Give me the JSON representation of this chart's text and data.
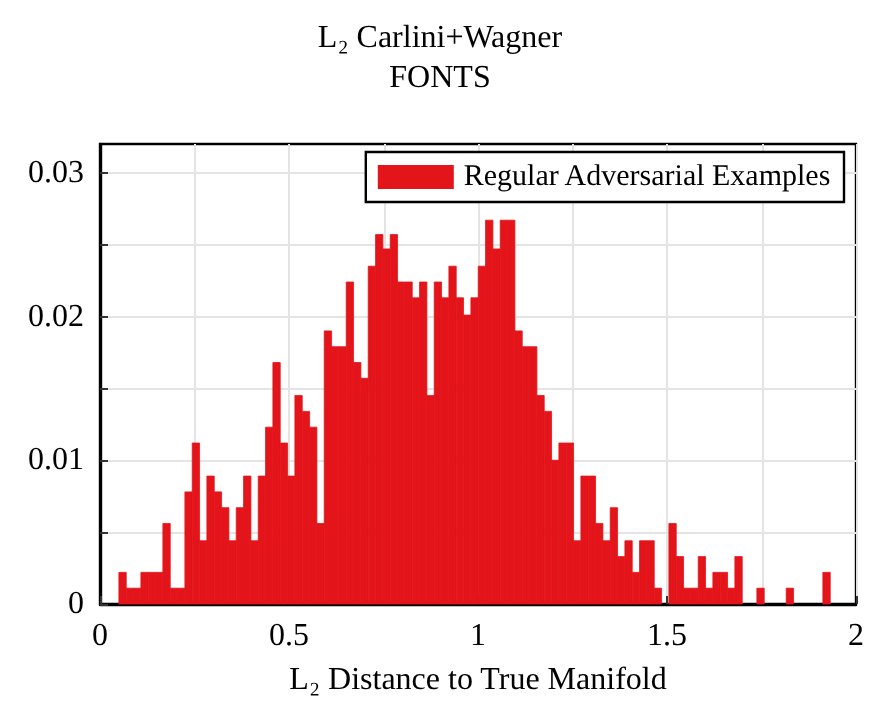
{
  "chart_data": {
    "type": "histogram",
    "title": "L₂ Carlini+Wagner",
    "subtitle": "FONTS",
    "xlabel": "L₂ Distance to True Manifold",
    "bins": [
      0.05,
      0.0694,
      0.0888,
      0.1082,
      0.1276,
      0.147,
      0.1664,
      0.1858,
      0.2052,
      0.2246,
      0.244,
      0.2634,
      0.2828,
      0.3022,
      0.3216,
      0.341,
      0.3604,
      0.3798,
      0.3992,
      0.4186,
      0.438,
      0.4574,
      0.4768,
      0.4962,
      0.5156,
      0.535,
      0.5544,
      0.5738,
      0.5932,
      0.6126,
      0.632,
      0.6514,
      0.6708,
      0.6902,
      0.7096,
      0.729,
      0.7484,
      0.7678,
      0.7872,
      0.8066,
      0.826,
      0.8454,
      0.8648,
      0.8842,
      0.9036,
      0.923,
      0.9424,
      0.9618,
      0.9812,
      1.0006,
      1.02,
      1.0394,
      1.0588,
      1.0782,
      1.0976,
      1.117,
      1.1364,
      1.1558,
      1.1752,
      1.1946,
      1.214,
      1.2334,
      1.2528,
      1.2722,
      1.2916,
      1.311,
      1.3304,
      1.3498,
      1.3692,
      1.3886,
      1.408,
      1.4274,
      1.4468,
      1.4662,
      1.4856,
      1.505,
      1.5244,
      1.5438,
      1.5632,
      1.5826,
      1.602,
      1.6214,
      1.6408,
      1.6602,
      1.6796,
      1.699,
      1.7184,
      1.7378,
      1.7572,
      1.7766,
      1.796,
      1.8154,
      1.8348,
      1.8542,
      1.8736,
      1.893,
      1.9124,
      1.9318
    ],
    "series": [
      {
        "name": "Regular Adversarial Examples",
        "color": "#e3151a",
        "values": [
          0.0022,
          0.0011,
          0.0011,
          0.0022,
          0.0022,
          0.0022,
          0.0056,
          0.0011,
          0.0011,
          0.0078,
          0.0112,
          0.0044,
          0.0089,
          0.0078,
          0.0067,
          0.0044,
          0.0067,
          0.0089,
          0.0044,
          0.0089,
          0.0123,
          0.0168,
          0.0112,
          0.0089,
          0.0145,
          0.0134,
          0.0123,
          0.0056,
          0.019,
          0.0179,
          0.0179,
          0.0224,
          0.0168,
          0.0157,
          0.0235,
          0.0257,
          0.0247,
          0.0257,
          0.0224,
          0.0224,
          0.0213,
          0.0224,
          0.0145,
          0.0224,
          0.0213,
          0.0235,
          0.0213,
          0.0201,
          0.0213,
          0.0235,
          0.0267,
          0.0247,
          0.0267,
          0.0267,
          0.019,
          0.0179,
          0.0179,
          0.0145,
          0.0134,
          0.01,
          0.0112,
          0.0112,
          0.0044,
          0.0089,
          0.0089,
          0.0056,
          0.0044,
          0.0067,
          0.0033,
          0.0044,
          0.0022,
          0.0044,
          0.0044,
          0.0011,
          0,
          0.0056,
          0.0033,
          0.0011,
          0.0011,
          0.0033,
          0.0011,
          0.0022,
          0.0022,
          0.0011,
          0.0033,
          0,
          0,
          0.0011,
          0,
          0,
          0,
          0.0011,
          0,
          0,
          0,
          0,
          0.0022
        ]
      }
    ],
    "xlim": [
      0,
      2
    ],
    "xticks": [
      0,
      {
        "value": 0.25,
        "label": null
      },
      0.5,
      {
        "value": 0.75,
        "label": null
      },
      1,
      {
        "value": 1.25,
        "label": null
      },
      1.5,
      {
        "value": 1.75,
        "label": null
      },
      2
    ],
    "ylim": [
      0,
      0.032
    ],
    "yticks": [
      0,
      {
        "value": 0.005,
        "label": null
      },
      0.01,
      {
        "value": 0.015,
        "label": null
      },
      0.02,
      {
        "value": 0.025,
        "label": null
      },
      0.03
    ],
    "grid": true,
    "legend": "top right"
  }
}
